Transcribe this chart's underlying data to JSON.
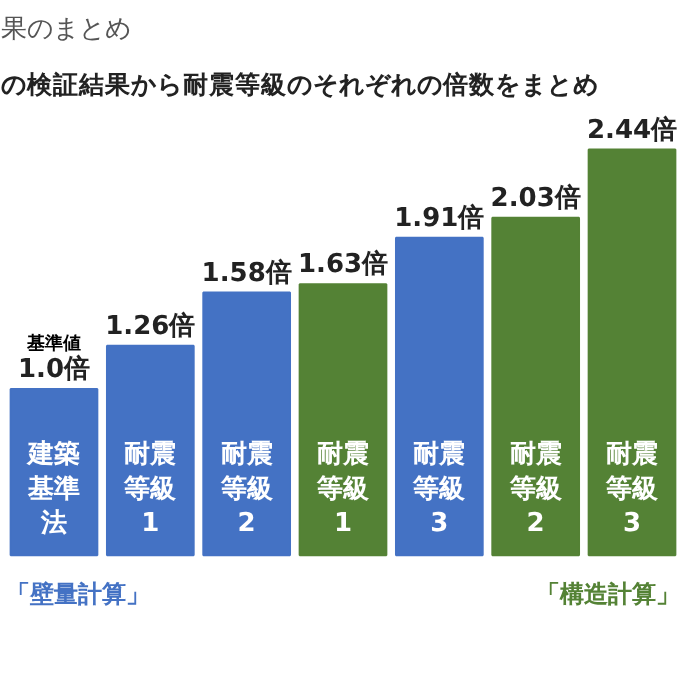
{
  "chart_data": {
    "type": "bar",
    "subtitle": "果のまとめ",
    "title": "の検証結果から耐震等級のそれぞれの倍数をまとめ",
    "categories": [
      "建築基準法",
      "耐震等級1",
      "耐震等級2",
      "耐震等級1",
      "耐震等級3",
      "耐震等級2",
      "耐震等級3"
    ],
    "series": [
      {
        "name": "「壁量計算」",
        "color": "#4472c4",
        "values": [
          1.0,
          1.26,
          1.58,
          null,
          1.91,
          null,
          null
        ],
        "value_labels": [
          "1.0倍",
          "1.26倍",
          "1.58倍",
          null,
          "1.91倍",
          null,
          null
        ]
      },
      {
        "name": "「構造計算」",
        "color": "#548235",
        "values": [
          null,
          null,
          null,
          1.63,
          null,
          2.03,
          2.44
        ],
        "value_labels": [
          null,
          null,
          null,
          "1.63倍",
          null,
          "2.03倍",
          "2.44倍"
        ]
      }
    ],
    "annotations": [
      {
        "text": "基準値",
        "x": "建築基準法",
        "y": 1.0
      }
    ],
    "legend": "bottom",
    "grid": false
  }
}
